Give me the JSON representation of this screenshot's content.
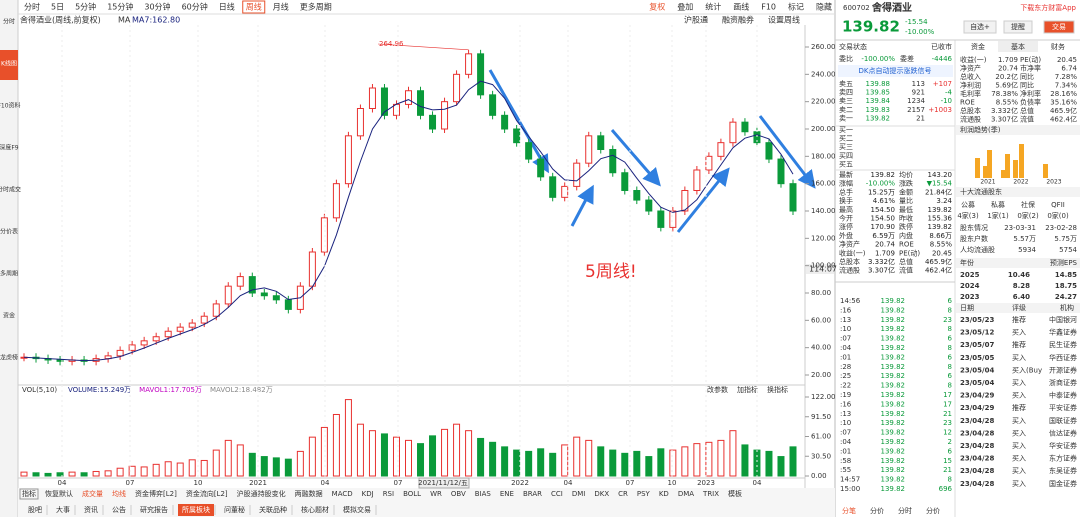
{
  "sidebar": {
    "items": [
      "分时",
      "K线图",
      "F10资料",
      "深度F9",
      "分时成交",
      "分价表",
      "多周期",
      "资金",
      "龙虎榜"
    ],
    "active": 1
  },
  "toolbar": {
    "periods": [
      "分时",
      "5日",
      "5分钟",
      "15分钟",
      "30分钟",
      "60分钟",
      "日线",
      "周线",
      "月线",
      "更多周期"
    ],
    "active": 7,
    "tools": [
      "复权",
      "叠加",
      "统计",
      "画线",
      "F10",
      "标记",
      "隐藏"
    ]
  },
  "chart": {
    "title": "舍得酒业(周线,前复权)",
    "ma_label": "MA",
    "ma7": "MA7:162.80",
    "links": [
      "沪股通",
      "融资融券",
      "设置周线"
    ],
    "high_label": "264.96",
    "annotation": "5周线!",
    "cursor_price": "114.07",
    "ylim": [
      10,
      275.9
    ],
    "yticks": [
      {
        "value": 260,
        "label": "260.00"
      },
      {
        "value": 240,
        "label": "240.00"
      },
      {
        "value": 220,
        "label": "220.00"
      },
      {
        "value": 200,
        "label": "200.00"
      },
      {
        "value": 180,
        "label": "180.00"
      },
      {
        "value": 160,
        "label": "160.00"
      },
      {
        "value": 140,
        "label": "140.00"
      },
      {
        "value": 120,
        "label": "120.00"
      },
      {
        "value": 100,
        "label": "100.00"
      },
      {
        "value": 80,
        "label": "80.00"
      },
      {
        "value": 60,
        "label": "60.00"
      },
      {
        "value": 40,
        "label": "40.00"
      },
      {
        "value": 20,
        "label": "20.00"
      }
    ],
    "closes": [
      33,
      32,
      31,
      30,
      31,
      30,
      32,
      34,
      38,
      42,
      45,
      48,
      52,
      55,
      58,
      63,
      72,
      85,
      92,
      80,
      78,
      75,
      68,
      85,
      110,
      135,
      160,
      195,
      215,
      230,
      210,
      218,
      228,
      210,
      200,
      220,
      240,
      255,
      225,
      210,
      200,
      190,
      178,
      165,
      150,
      158,
      175,
      195,
      185,
      168,
      155,
      148,
      140,
      128,
      140,
      155,
      170,
      180,
      190,
      205,
      198,
      190,
      178,
      160,
      140
    ],
    "up_color": "#e8312f",
    "down_color": "#0a9a3a",
    "vol_legend": [
      "VOL(5,10)",
      "VOLUME:15.249万",
      "MAVOL1:17.705万",
      "MAVOL2:18.482万"
    ],
    "vol_tools": [
      "改参数",
      "加指标",
      "换指标"
    ],
    "vol_lim": [
      0,
      122
    ],
    "vol_ticks": [
      {
        "value": 122,
        "label": "122.00"
      },
      {
        "value": 91.5,
        "label": "91.50"
      },
      {
        "value": 61,
        "label": "61.00"
      },
      {
        "value": 30.5,
        "label": "30.50"
      },
      {
        "value": 0,
        "label": "0.00"
      }
    ],
    "volumes": [
      6,
      5,
      4,
      5,
      6,
      5,
      7,
      8,
      12,
      15,
      14,
      18,
      22,
      20,
      25,
      24,
      40,
      55,
      48,
      35,
      30,
      28,
      26,
      38,
      60,
      75,
      95,
      118,
      80,
      70,
      65,
      60,
      55,
      50,
      62,
      72,
      80,
      70,
      58,
      52,
      45,
      40,
      38,
      42,
      35,
      48,
      60,
      55,
      45,
      40,
      35,
      38,
      30,
      42,
      40,
      45,
      50,
      52,
      55,
      70,
      48,
      40,
      38,
      30,
      45
    ],
    "x_labels": [
      "04",
      "07",
      "10",
      "2021",
      "04",
      "07",
      "2021/11/12/五",
      "2022",
      "04",
      "07",
      "10",
      "2023",
      "04"
    ]
  },
  "indicator_tabs": {
    "items": [
      "指标",
      "恢复默认",
      "成交量",
      "均线",
      "资金博弈[L2]",
      "资金流向[L2]",
      "沪股通持股变化",
      "两融数据",
      "MACD",
      "KDJ",
      "RSI",
      "BOLL",
      "WR",
      "OBV",
      "BIAS",
      "ENE",
      "BRAR",
      "CCI",
      "DMI",
      "DKX",
      "CR",
      "PSY",
      "KD",
      "DMA",
      "TRIX",
      "模板"
    ],
    "highlight": [
      2,
      3
    ]
  },
  "bottom_tabs": {
    "items": [
      "股吧",
      "大事",
      "资讯",
      "公告",
      "研究报告",
      "所属板块",
      "问董秘",
      "关联品种",
      "核心题材",
      "模拟交易"
    ],
    "active": 5
  },
  "quote": {
    "code": "600702",
    "name": "舍得酒业",
    "price": "139.82",
    "change": "-15.54",
    "pct": "-10.00%",
    "buttons": [
      "自选+",
      "提醒",
      "交易"
    ],
    "app_link": "下载东方财富App",
    "status": [
      "交易状态",
      "已收市"
    ],
    "ratio": [
      "委比",
      "-100.00%",
      "委差",
      "-4446"
    ],
    "dk_link": "DK点自动提示涨跌信号",
    "book": [
      [
        "卖五",
        "139.88",
        "113",
        "+107"
      ],
      [
        "卖四",
        "139.85",
        "921",
        "-4"
      ],
      [
        "卖三",
        "139.84",
        "1234",
        "-10"
      ],
      [
        "卖二",
        "139.83",
        "2157",
        "+1003"
      ],
      [
        "卖一",
        "139.82",
        "21",
        null
      ],
      [
        "买一",
        null,
        null,
        null
      ],
      [
        "买二",
        null,
        null,
        null
      ],
      [
        "买三",
        null,
        null,
        null
      ],
      [
        "买四",
        null,
        null,
        null
      ],
      [
        "买五",
        null,
        null,
        null
      ]
    ],
    "stats": [
      [
        "最新",
        "139.82",
        "均价",
        "143.20"
      ],
      [
        "涨幅",
        "-10.00%",
        "涨跌",
        "▼15.54"
      ],
      [
        "总手",
        "15.25万",
        "金额",
        "21.84亿"
      ],
      [
        "换手",
        "4.61%",
        "量比",
        "3.24"
      ],
      [
        "最高",
        "154.50",
        "最低",
        "139.82"
      ],
      [
        "今开",
        "154.50",
        "昨收",
        "155.36"
      ],
      [
        "涨停",
        "170.90",
        "跌停",
        "139.82"
      ],
      [
        "外盘",
        "6.59万",
        "内盘",
        "8.66万"
      ],
      [
        "净资产",
        "20.74",
        "ROE",
        "8.55%"
      ],
      [
        "收益(一)",
        "1.709",
        "PE(动)",
        "20.45"
      ],
      [
        "总股本",
        "3.332亿",
        "总值",
        "465.9亿"
      ],
      [
        "流通股",
        "3.307亿",
        "流值",
        "462.4亿"
      ]
    ],
    "ticks": [
      [
        "14:56",
        "139.82",
        "6"
      ],
      [
        ":16",
        "139.82",
        "8"
      ],
      [
        ":13",
        "139.82",
        "23"
      ],
      [
        ":10",
        "139.82",
        "8"
      ],
      [
        ":07",
        "139.82",
        "6"
      ],
      [
        ":04",
        "139.82",
        "8"
      ],
      [
        ":01",
        "139.82",
        "6"
      ],
      [
        ":28",
        "139.82",
        "8"
      ],
      [
        ":25",
        "139.82",
        "6"
      ],
      [
        ":22",
        "139.82",
        "8"
      ],
      [
        ":19",
        "139.82",
        "17"
      ],
      [
        ":16",
        "139.82",
        "17"
      ],
      [
        ":13",
        "139.82",
        "21"
      ],
      [
        ":10",
        "139.82",
        "23"
      ],
      [
        ":07",
        "139.82",
        "12"
      ],
      [
        ":04",
        "139.82",
        "2"
      ],
      [
        ":01",
        "139.82",
        "6"
      ],
      [
        ":58",
        "139.82",
        "15"
      ],
      [
        ":55",
        "139.82",
        "21"
      ],
      [
        "14:57",
        "139.82",
        "8"
      ],
      [
        "15:00",
        "139.82",
        "696"
      ]
    ],
    "tick_tabs": [
      "分笔",
      "分价",
      "分时",
      "分价"
    ]
  },
  "fundamentals": {
    "tabs": [
      "资金",
      "基本",
      "财务"
    ],
    "active": 1,
    "rows": [
      [
        "收益(一)",
        "1.709",
        "PE(动)",
        "20.45"
      ],
      [
        "净资产",
        "20.74",
        "市净率",
        "6.74"
      ],
      [
        "总收入",
        "20.2亿",
        "同比",
        "7.28%"
      ],
      [
        "净利润",
        "5.69亿",
        "同比",
        "7.34%"
      ],
      [
        "毛利率",
        "78.38%",
        "净利率",
        "28.16%"
      ],
      [
        "ROE",
        "8.55%",
        "负债率",
        "35.16%"
      ],
      [
        "总股本",
        "3.332亿",
        "总值",
        "465.9亿"
      ],
      [
        "流通股",
        "3.307亿",
        "流值",
        "462.4亿"
      ]
    ],
    "profit_title": "利润趋势(季)",
    "profit_years": [
      "2021",
      "2022",
      "2023"
    ],
    "holders_title": "十大流通股东",
    "holder_types": [
      "公募",
      "私募",
      "社保",
      "QFII"
    ],
    "holder_counts": [
      "4家(3)",
      "1家(1)",
      "0家(2)",
      "0家(0)"
    ],
    "holder_rows": [
      [
        "股东情况",
        "23-03-31",
        "23-02-28"
      ],
      [
        "股东户数",
        "5.57万",
        "5.75万"
      ],
      [
        "人均流通股",
        "5934",
        "5754"
      ]
    ],
    "eps_header": [
      "年份",
      "预测EPS"
    ],
    "eps_rows": [
      [
        "2025",
        "10.46",
        "14.85"
      ],
      [
        "2024",
        "8.28",
        "18.75"
      ],
      [
        "2023",
        "6.40",
        "24.27"
      ]
    ],
    "rating_header": [
      "日期",
      "评级",
      "机构"
    ],
    "ratings": [
      [
        "23/05/23",
        "推荐",
        "中国银河"
      ],
      [
        "23/05/12",
        "买入",
        "华鑫证券"
      ],
      [
        "23/05/07",
        "推荐",
        "民生证券"
      ],
      [
        "23/05/05",
        "买入",
        "华西证券"
      ],
      [
        "23/05/04",
        "买入(Buy",
        "开源证券"
      ],
      [
        "23/05/04",
        "买入",
        "浙商证券"
      ],
      [
        "23/04/29",
        "买入",
        "中泰证券"
      ],
      [
        "23/04/29",
        "推荐",
        "平安证券"
      ],
      [
        "23/04/28",
        "买入",
        "国联证券"
      ],
      [
        "23/04/28",
        "买入",
        "信达证券"
      ],
      [
        "23/04/28",
        "买入",
        "华安证券"
      ],
      [
        "23/04/28",
        "买入",
        "东方证券"
      ],
      [
        "23/04/28",
        "买入",
        "东吴证券"
      ],
      [
        "23/04/28",
        "买入",
        "国金证券"
      ]
    ]
  }
}
